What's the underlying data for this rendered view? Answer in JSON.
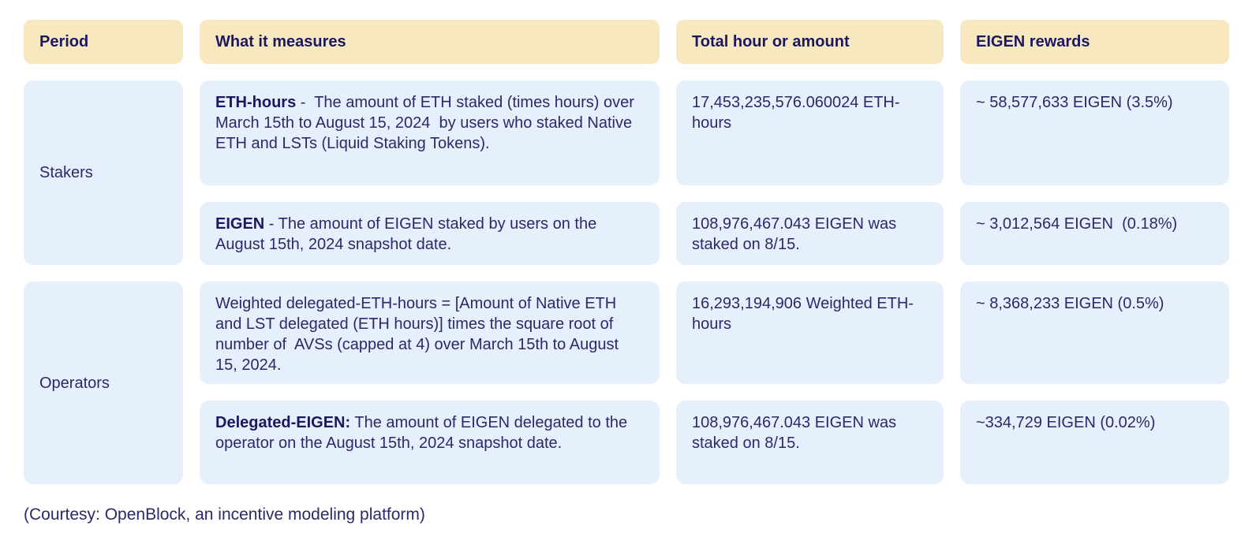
{
  "table": {
    "headers": [
      {
        "label": "Period"
      },
      {
        "label": "What it measures"
      },
      {
        "label": "Total hour or amount"
      },
      {
        "label": "EIGEN rewards"
      }
    ],
    "groups": [
      {
        "period": "Stakers",
        "rows": [
          {
            "measure_bold": "ETH-hours",
            "measure_rest": " -  The amount of ETH staked (times hours) over March 15th to August 15, 2024  by users who staked Native ETH and LSTs (Liquid Staking Tokens).",
            "total": "17,453,235,576.060024 ETH-hours",
            "rewards": "~ 58,577,633 EIGEN (3.5%)"
          },
          {
            "measure_bold": "EIGEN",
            "measure_rest": " - The amount of EIGEN staked by users on the August 15th, 2024 snapshot date.",
            "total": "108,976,467.043 EIGEN was staked on 8/15.",
            "rewards": "~ 3,012,564 EIGEN  (0.18%)"
          }
        ]
      },
      {
        "period": "Operators",
        "rows": [
          {
            "measure_bold": "",
            "measure_rest": "Weighted delegated-ETH-hours = [Amount of Native ETH and LST delegated (ETH hours)] times the square root of number of  AVSs (capped at 4) over March 15th to August 15, 2024.",
            "total": "16,293,194,906 Weighted ETH-hours",
            "rewards": "~ 8,368,233 EIGEN (0.5%)"
          },
          {
            "measure_bold": "Delegated-EIGEN:",
            "measure_rest": " The amount of EIGEN delegated to the operator on the August 15th, 2024 snapshot date.",
            "total": "108,976,467.043 EIGEN was staked on 8/15.",
            "rewards": "~334,729 EIGEN (0.02%)"
          }
        ]
      }
    ]
  },
  "footer": {
    "caption": "(Courtesy: OpenBlock, an incentive modeling platform)"
  },
  "colors": {
    "header_bg": "#F8E8C0",
    "cell_bg": "#E6F0FC",
    "text": "#2B2968",
    "text_bold": "#1B1860",
    "page_bg": "#FFFFFF"
  },
  "chart_data": {
    "type": "table",
    "columns": [
      "Period",
      "What it measures",
      "Total hour or amount",
      "EIGEN rewards"
    ],
    "rows": [
      [
        "Stakers",
        "ETH-hours -  The amount of ETH staked (times hours) over March 15th to August 15, 2024  by users who staked Native ETH and LSTs (Liquid Staking Tokens).",
        "17,453,235,576.060024 ETH-hours",
        "~ 58,577,633 EIGEN (3.5%)"
      ],
      [
        "Stakers",
        "EIGEN - The amount of EIGEN staked by users on the August 15th, 2024 snapshot date.",
        "108,976,467.043 EIGEN was staked on 8/15.",
        "~ 3,012,564 EIGEN  (0.18%)"
      ],
      [
        "Operators",
        "Weighted delegated-ETH-hours = [Amount of Native ETH and LST delegated (ETH hours)] times the square root of number of  AVSs (capped at 4) over March 15th to August 15, 2024.",
        "16,293,194,906 Weighted ETH-hours",
        "~ 8,368,233 EIGEN (0.5%)"
      ],
      [
        "Operators",
        "Delegated-EIGEN: The amount of EIGEN delegated to the operator on the August 15th, 2024 snapshot date.",
        "108,976,467.043 EIGEN was staked on 8/15.",
        "~334,729 EIGEN (0.02%)"
      ]
    ],
    "caption": "(Courtesy: OpenBlock, an incentive modeling platform)",
    "layout": {
      "period_column_rowspans": [
        2,
        2
      ],
      "header_style": "cream-pill",
      "body_style": "light-blue-card"
    }
  }
}
